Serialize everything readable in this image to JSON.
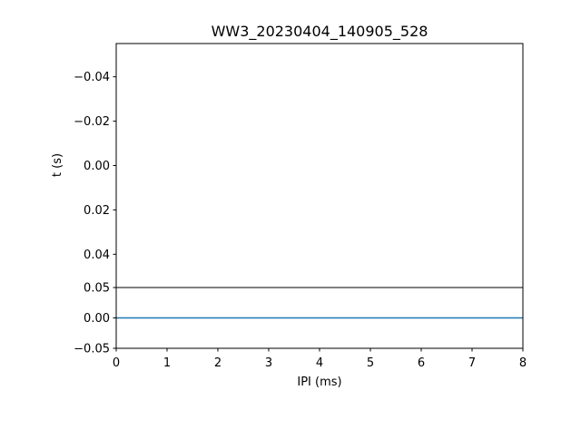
{
  "chart_data": [
    {
      "type": "line",
      "title": "WW3_20230404_140905_528",
      "xlabel": "",
      "ylabel": "t (s)",
      "ylim": [
        0.055,
        -0.055
      ],
      "y_inverted": true,
      "yticks": [
        -0.04,
        -0.02,
        0.0,
        0.02,
        0.04
      ],
      "ytick_labels": [
        "−0.04",
        "−0.02",
        "0.00",
        "0.02",
        "0.04"
      ],
      "xticks_visible": false,
      "series": []
    },
    {
      "type": "line",
      "xlabel": "IPI (ms)",
      "ylabel": "",
      "xlim": [
        0,
        8
      ],
      "ylim": [
        -0.05,
        0.05
      ],
      "xticks": [
        0,
        1,
        2,
        3,
        4,
        5,
        6,
        7,
        8
      ],
      "xtick_labels": [
        "0",
        "1",
        "2",
        "3",
        "4",
        "5",
        "6",
        "7",
        "8"
      ],
      "yticks": [
        -0.05,
        0.0,
        0.05
      ],
      "ytick_labels": [
        "−0.05",
        "0.00",
        "0.05"
      ],
      "series": [
        {
          "x": [
            0,
            8
          ],
          "y": [
            0,
            0
          ],
          "color": "#1f77b4"
        }
      ]
    }
  ]
}
